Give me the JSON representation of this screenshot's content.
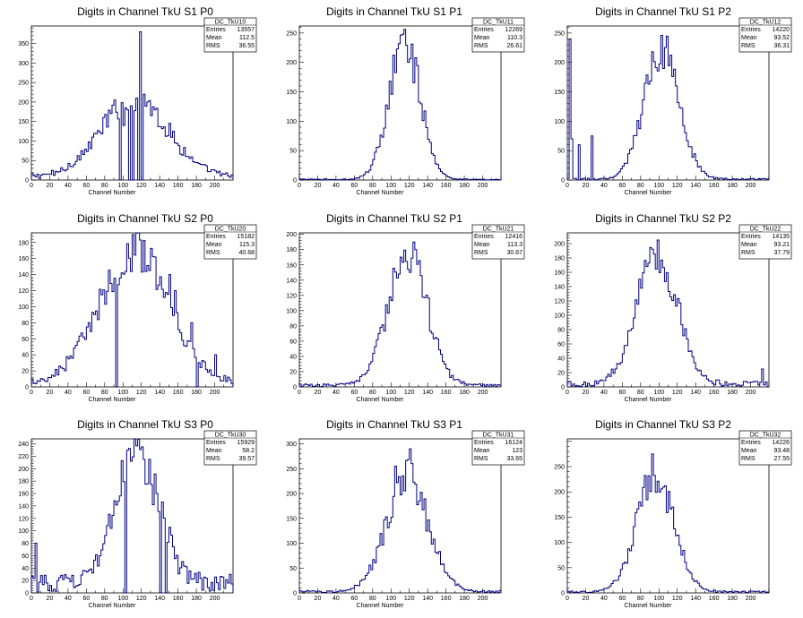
{
  "chart_data": [
    {
      "type": "histogram",
      "title": "Digits in Channel TkU S1 P0",
      "xlabel": "Channel Number",
      "xlim": [
        0,
        220
      ],
      "ylim": [
        0,
        395
      ],
      "yticks": [
        0,
        50,
        100,
        150,
        200,
        250,
        300,
        350
      ],
      "stats": {
        "name": "DC_TkU10",
        "entries": "13557",
        "mean": "112.5",
        "rms": "36.55"
      },
      "shape": {
        "center": 112.5,
        "sigma": 36.55,
        "peak": 200,
        "bg": 15
      },
      "spikes": [
        [
          118,
          380
        ],
        [
          100,
          140
        ],
        [
          104,
          180
        ],
        [
          108,
          190
        ],
        [
          114,
          210
        ],
        [
          122,
          220
        ],
        [
          126,
          200
        ]
      ],
      "dips": [
        [
          96,
          0
        ],
        [
          106,
          0
        ],
        [
          110,
          0
        ],
        [
          116,
          0
        ],
        [
          120,
          0
        ]
      ]
    },
    {
      "type": "histogram",
      "title": "Digits in Channel TkU S1 P1",
      "xlabel": "Channel Number",
      "xlim": [
        0,
        220
      ],
      "ylim": [
        0,
        262
      ],
      "yticks": [
        0,
        50,
        100,
        150,
        200,
        250
      ],
      "stats": {
        "name": "DC_TkU11",
        "entries": "12269",
        "mean": "110.3",
        "rms": "26.61"
      },
      "shape": {
        "center": 115,
        "sigma": 17,
        "peak": 235,
        "bg": 2
      },
      "spikes": [
        [
          113,
          248
        ]
      ],
      "dips": []
    },
    {
      "type": "histogram",
      "title": "Digits in Channel TkU S1 P2",
      "xlabel": "Channel Number",
      "xlim": [
        0,
        220
      ],
      "ylim": [
        0,
        262
      ],
      "yticks": [
        0,
        50,
        100,
        150,
        200,
        250
      ],
      "stats": {
        "name": "DC_TkU12",
        "entries": "14220",
        "mean": "93.52",
        "rms": "36.31"
      },
      "shape": {
        "center": 103,
        "sigma": 19,
        "peak": 228,
        "bg": 3
      },
      "spikes": [
        [
          2,
          240
        ],
        [
          4,
          70
        ],
        [
          12,
          60
        ],
        [
          26,
          75
        ],
        [
          102,
          246
        ]
      ],
      "dips": []
    },
    {
      "type": "histogram",
      "title": "Digits in Channel TkU S2 P0",
      "xlabel": "Channel Number",
      "xlim": [
        0,
        220
      ],
      "ylim": [
        0,
        192
      ],
      "yticks": [
        0,
        20,
        40,
        60,
        80,
        100,
        120,
        140,
        160,
        180
      ],
      "stats": {
        "name": "DC_TkU20",
        "entries": "15182",
        "mean": "115.3",
        "rms": "40.68"
      },
      "shape": {
        "center": 112,
        "sigma": 38,
        "peak": 165,
        "bg": 8
      },
      "spikes": [
        [
          118,
          183
        ],
        [
          150,
          140
        ],
        [
          156,
          120
        ],
        [
          175,
          80
        ],
        [
          180,
          115
        ],
        [
          200,
          40
        ]
      ],
      "dips": [
        [
          92,
          0
        ],
        [
          180,
          0
        ]
      ]
    },
    {
      "type": "histogram",
      "title": "Digits in Channel TkU S2 P1",
      "xlabel": "Channel Number",
      "xlim": [
        0,
        220
      ],
      "ylim": [
        0,
        202
      ],
      "yticks": [
        0,
        20,
        40,
        60,
        80,
        100,
        120,
        140,
        160,
        180,
        200
      ],
      "stats": {
        "name": "DC_TkU21",
        "entries": "12416",
        "mean": "113.3",
        "rms": "30.67"
      },
      "shape": {
        "center": 118,
        "sigma": 21,
        "peak": 180,
        "bg": 4
      },
      "spikes": [
        [
          124,
          190
        ]
      ],
      "dips": []
    },
    {
      "type": "histogram",
      "title": "Digits in Channel TkU S2 P2",
      "xlabel": "Channel Number",
      "xlim": [
        0,
        220
      ],
      "ylim": [
        0,
        215
      ],
      "yticks": [
        0,
        20,
        40,
        60,
        80,
        100,
        120,
        140,
        160,
        180,
        200
      ],
      "stats": {
        "name": "DC_TkU22",
        "entries": "14135",
        "mean": "93.21",
        "rms": "37.79"
      },
      "shape": {
        "center": 98,
        "sigma": 22,
        "peak": 185,
        "bg": 8
      },
      "spikes": [
        [
          98,
          205
        ],
        [
          212,
          25
        ]
      ],
      "dips": []
    },
    {
      "type": "histogram",
      "title": "Digits in Channel TkU S3 P0",
      "xlabel": "Channel Number",
      "xlim": [
        0,
        220
      ],
      "ylim": [
        0,
        248
      ],
      "yticks": [
        0,
        20,
        40,
        60,
        80,
        100,
        120,
        140,
        160,
        180,
        200,
        220,
        240
      ],
      "stats": {
        "name": "DC_TkU30",
        "entries": "15929",
        "mean": "58.2",
        "rms": "39.57"
      },
      "shape": {
        "center": 115,
        "sigma": 24,
        "peak": 205,
        "bg": 30
      },
      "spikes": [
        [
          120,
          235
        ],
        [
          4,
          80
        ]
      ],
      "dips": [
        [
          102,
          0
        ],
        [
          140,
          0
        ],
        [
          146,
          0
        ]
      ]
    },
    {
      "type": "histogram",
      "title": "Digits in Channel TkU S3 P1",
      "xlabel": "Channel Number",
      "xlim": [
        0,
        220
      ],
      "ylim": [
        0,
        310
      ],
      "yticks": [
        0,
        50,
        100,
        150,
        200,
        250,
        300
      ],
      "stats": {
        "name": "DC_TkU31",
        "entries": "16124",
        "mean": "123",
        "rms": "33.65"
      },
      "shape": {
        "center": 118,
        "sigma": 23,
        "peak": 225,
        "bg": 5
      },
      "spikes": [
        [
          120,
          290
        ],
        [
          104,
          255
        ]
      ],
      "dips": []
    },
    {
      "type": "histogram",
      "title": "Digits in Channel TkU S3 P2",
      "xlabel": "Channel Number",
      "xlim": [
        0,
        220
      ],
      "ylim": [
        0,
        305
      ],
      "yticks": [
        0,
        50,
        100,
        150,
        200,
        250
      ],
      "stats": {
        "name": "DC_TkU32",
        "entries": "14226",
        "mean": "93.48",
        "rms": "27.55"
      },
      "shape": {
        "center": 96,
        "sigma": 20,
        "peak": 235,
        "bg": 4
      },
      "spikes": [
        [
          92,
          275
        ]
      ],
      "dips": []
    }
  ],
  "stat_labels": {
    "entries": "Entries",
    "mean": "Mean",
    "rms": "RMS"
  },
  "colors": {
    "line": "#000080",
    "frame": "#000000",
    "background": "#ffffff"
  }
}
